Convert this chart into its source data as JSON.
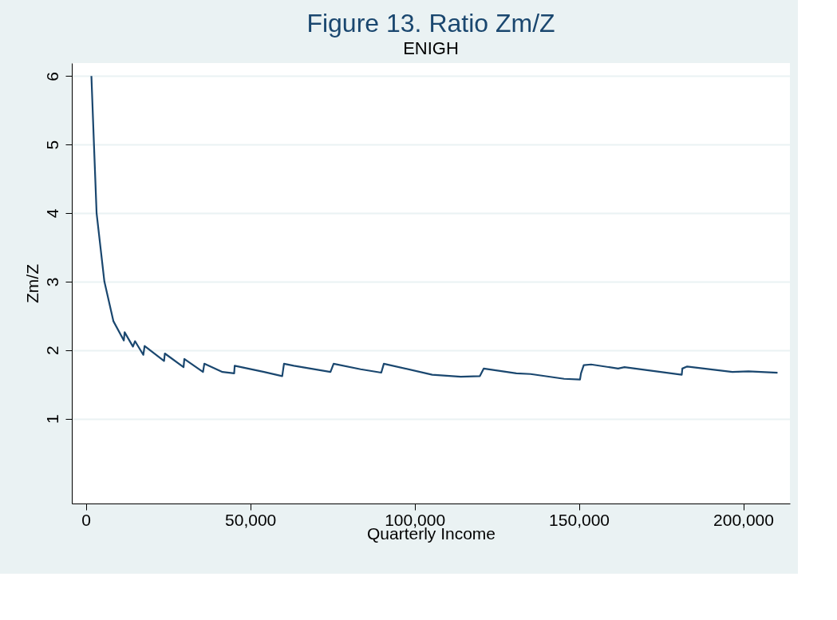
{
  "chart_data": {
    "type": "line",
    "title": "Figure 13. Ratio Zm/Z",
    "subtitle": "ENIGH",
    "xlabel": "Quarterly Income",
    "ylabel": "Zm/Z",
    "x": [
      1660,
      2440,
      3240,
      5610,
      8370,
      11530,
      11770,
      14300,
      14930,
      17460,
      17850,
      23770,
      24010,
      29700,
      29940,
      35620,
      36020,
      41550,
      45100,
      45260,
      54190,
      59720,
      60260,
      63270,
      74400,
      75360,
      83580,
      89860,
      90640,
      105350,
      114050,
      119860,
      121020,
      130970,
      135310,
      145500,
      150330,
      150630,
      151470,
      153700,
      161920,
      163860,
      181280,
      181470,
      182940,
      196680,
      201590,
      210430
    ],
    "series": [
      {
        "color": "#1a476f",
        "values": [
          6.0,
          5.0,
          4.0,
          3.0,
          2.42,
          2.14,
          2.26,
          2.05,
          2.13,
          1.93,
          2.06,
          1.84,
          1.95,
          1.75,
          1.87,
          1.68,
          1.8,
          1.68,
          1.66,
          1.77,
          1.68,
          1.62,
          1.8,
          1.77,
          1.68,
          1.8,
          1.72,
          1.67,
          1.8,
          1.64,
          1.61,
          1.62,
          1.73,
          1.66,
          1.65,
          1.58,
          1.57,
          1.66,
          1.78,
          1.79,
          1.73,
          1.75,
          1.64,
          1.73,
          1.76,
          1.68,
          1.69,
          1.67
        ]
      }
    ],
    "xlim": [
      -4300,
      214200
    ],
    "ylim": [
      -0.24,
      6.19
    ],
    "xticks": [
      0,
      {
        "value": 50000,
        "label": "50,000"
      },
      {
        "value": 100000,
        "label": "100,000"
      },
      {
        "value": 150000,
        "label": "150,000"
      },
      {
        "value": 200000,
        "label": "200,000"
      }
    ],
    "yticks": [
      1,
      2,
      3,
      4,
      5,
      6
    ],
    "grid": "y",
    "marker": "none",
    "line_style": "solid"
  }
}
